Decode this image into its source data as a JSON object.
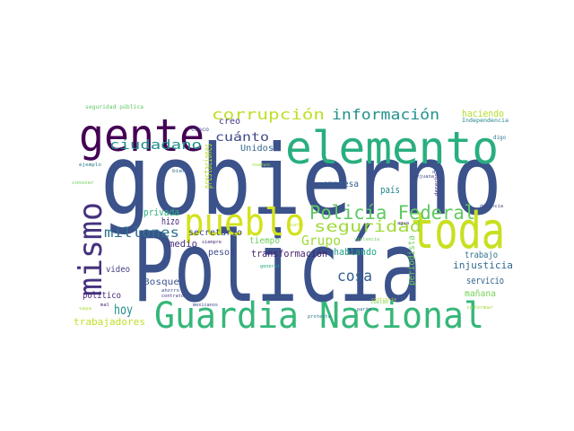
{
  "words": [
    {
      "text": "gobierno",
      "color": "#3b528b"
    },
    {
      "text": "Policía",
      "color": "#3b528b"
    },
    {
      "text": "Guardia Nacional",
      "color": "#35b779"
    },
    {
      "text": "elemento",
      "color": "#29af7f"
    },
    {
      "text": "gente",
      "color": "#440154"
    },
    {
      "text": "toda",
      "color": "#c8e020"
    },
    {
      "text": "pueblo",
      "color": "#d2e21b"
    },
    {
      "text": "mismo",
      "color": "#46327e"
    },
    {
      "text": "Policía Federal",
      "color": "#5ec962"
    },
    {
      "text": "seguridad",
      "color": "#a0da39"
    },
    {
      "text": "corrupción",
      "color": "#bddf26"
    },
    {
      "text": "información",
      "color": "#21918c"
    },
    {
      "text": "ciudadano",
      "color": "#21918c"
    },
    {
      "text": "cuánto",
      "color": "#3e4989"
    },
    {
      "text": "Unidos",
      "color": "#31688e"
    },
    {
      "text": "creo",
      "color": "#443983"
    },
    {
      "text": "haciendo",
      "color": "#b5de2b"
    },
    {
      "text": "Independencia",
      "color": "#26828e"
    },
    {
      "text": "millones",
      "color": "#2c728e"
    },
    {
      "text": "hoy",
      "color": "#21918c"
    },
    {
      "text": "Grupo",
      "color": "#a0da39"
    },
    {
      "text": "cosa",
      "color": "#35608d"
    },
    {
      "text": "hizo",
      "color": "#482878"
    },
    {
      "text": "privada",
      "color": "#2db27d"
    },
    {
      "text": "medio",
      "color": "#46327e"
    },
    {
      "text": "secretario",
      "color": "#3e4a89"
    },
    {
      "text": "tiempo",
      "color": "#6ccd5a"
    },
    {
      "text": "transformación",
      "color": "#482173"
    },
    {
      "text": "pesos",
      "color": "#3e4989"
    },
    {
      "text": "hablando",
      "color": "#21a585"
    },
    {
      "text": "trabajo",
      "color": "#2c728e"
    },
    {
      "text": "injusticia",
      "color": "#31688e"
    },
    {
      "text": "servicio",
      "color": "#33638d"
    },
    {
      "text": "mañana",
      "color": "#75d054"
    },
    {
      "text": "video",
      "color": "#433e85"
    },
    {
      "text": "Bosque",
      "color": "#3b528b"
    },
    {
      "text": "político",
      "color": "#482878"
    },
    {
      "text": "trabajadores",
      "color": "#c0df25"
    },
    {
      "text": "empresa",
      "color": "#34608d"
    },
    {
      "text": "país",
      "color": "#25848e"
    },
    {
      "text": "periodista",
      "color": "#6ece58"
    },
    {
      "text": "prestaciones",
      "color": "#b5de2b"
    },
    {
      "text": "seguridad pública",
      "color": "#5ec962"
    },
    {
      "text": "cinco",
      "color": "#3e4989"
    },
    {
      "text": "ejemplo",
      "color": "#2a788e"
    },
    {
      "text": "bien",
      "color": "#31688e"
    },
    {
      "text": "nuevo",
      "color": "#9fda3a"
    },
    {
      "text": "conocer",
      "color": "#6ece58"
    },
    {
      "text": "siempre",
      "color": "#472d7b"
    },
    {
      "text": "general",
      "color": "#22a884"
    },
    {
      "text": "ahorro",
      "color": "#3b528b"
    },
    {
      "text": "contrato",
      "color": "#46327e"
    },
    {
      "text": "mexicanos",
      "color": "#3e4989"
    },
    {
      "text": "mal",
      "color": "#482576"
    },
    {
      "text": "vaya",
      "color": "#a5db36"
    },
    {
      "text": "parte",
      "color": "#31688e"
    },
    {
      "text": "sueldo",
      "color": "#7ad151"
    },
    {
      "text": "protesta",
      "color": "#2a788e"
    },
    {
      "text": "contrario",
      "color": "#b5de2b"
    },
    {
      "text": "informar",
      "color": "#a0da39"
    },
    {
      "text": "digo",
      "color": "#2a788e"
    },
    {
      "text": "dar",
      "color": "#3b528b"
    },
    {
      "text": "derecho",
      "color": "#482878"
    },
    {
      "text": "denuncia",
      "color": "#3e4989"
    },
    {
      "text": "agua",
      "color": "#46327e"
    },
    {
      "text": "violencia",
      "color": "#6ece58"
    },
    {
      "text": "Sanjuana",
      "color": "#3e4989"
    },
    {
      "text": "asunto",
      "color": "#c2df23"
    }
  ]
}
